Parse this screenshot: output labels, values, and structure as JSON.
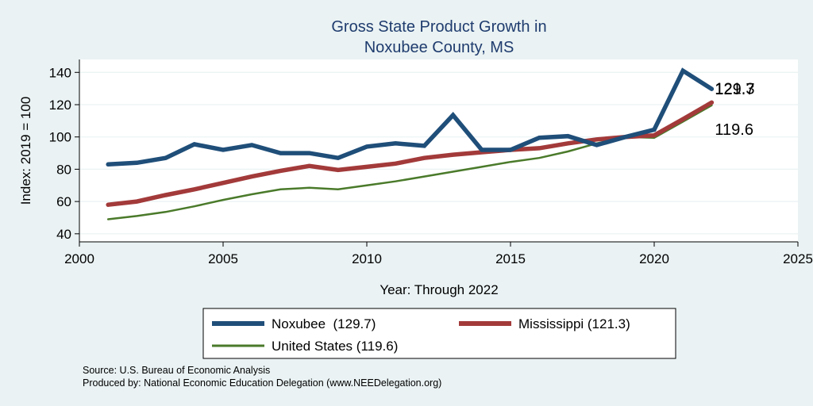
{
  "chart_data": {
    "type": "line",
    "title": [
      "Gross State Product Growth in",
      "Noxubee County, MS"
    ],
    "xlabel": "Year: Through 2022",
    "ylabel": "Index: 2019 = 100",
    "xlim": [
      2000,
      2025
    ],
    "ylim": [
      35,
      148
    ],
    "xticks": [
      2000,
      2005,
      2010,
      2015,
      2020,
      2025
    ],
    "yticks": [
      40,
      60,
      80,
      100,
      120,
      140
    ],
    "grid": true,
    "x": [
      2001,
      2002,
      2003,
      2004,
      2005,
      2006,
      2007,
      2008,
      2009,
      2010,
      2011,
      2012,
      2013,
      2014,
      2015,
      2016,
      2017,
      2018,
      2019,
      2020,
      2021,
      2022
    ],
    "series": [
      {
        "name": "Noxubee",
        "color": "#1f4e79",
        "end_label": "129.7",
        "values": [
          83,
          84,
          87,
          95.5,
          92,
          95,
          90,
          90,
          87,
          94,
          96,
          94.5,
          113.5,
          92,
          92,
          99.5,
          100.5,
          95,
          100,
          104.5,
          141,
          129.7
        ]
      },
      {
        "name": "Mississippi",
        "color": "#a33a3a",
        "end_label": "121.3",
        "values": [
          58,
          60,
          64,
          67.5,
          71.5,
          75.5,
          79,
          82,
          79.5,
          81.5,
          83.5,
          87,
          89,
          90.5,
          92,
          93,
          96,
          98.5,
          100,
          101,
          111,
          121.3
        ]
      },
      {
        "name": "United States",
        "color": "#4a7a2a",
        "end_label": "119.6",
        "values": [
          49,
          51,
          53.5,
          57,
          61,
          64.5,
          67.5,
          68.5,
          67.5,
          70,
          72.5,
          75.5,
          78.5,
          81.5,
          84.5,
          87,
          91,
          96,
          100,
          99.5,
          109.5,
          119.6
        ]
      }
    ],
    "legend": {
      "position": "bottom",
      "entries": [
        "Noxubee  (129.7)",
        "Mississippi (121.3)",
        "United States (119.6)"
      ]
    }
  },
  "source_lines": [
    "Source: U.S. Bureau of Economic Analysis",
    "Produced by: National Economic Education Delegation (www.NEEDelegation.org)"
  ]
}
